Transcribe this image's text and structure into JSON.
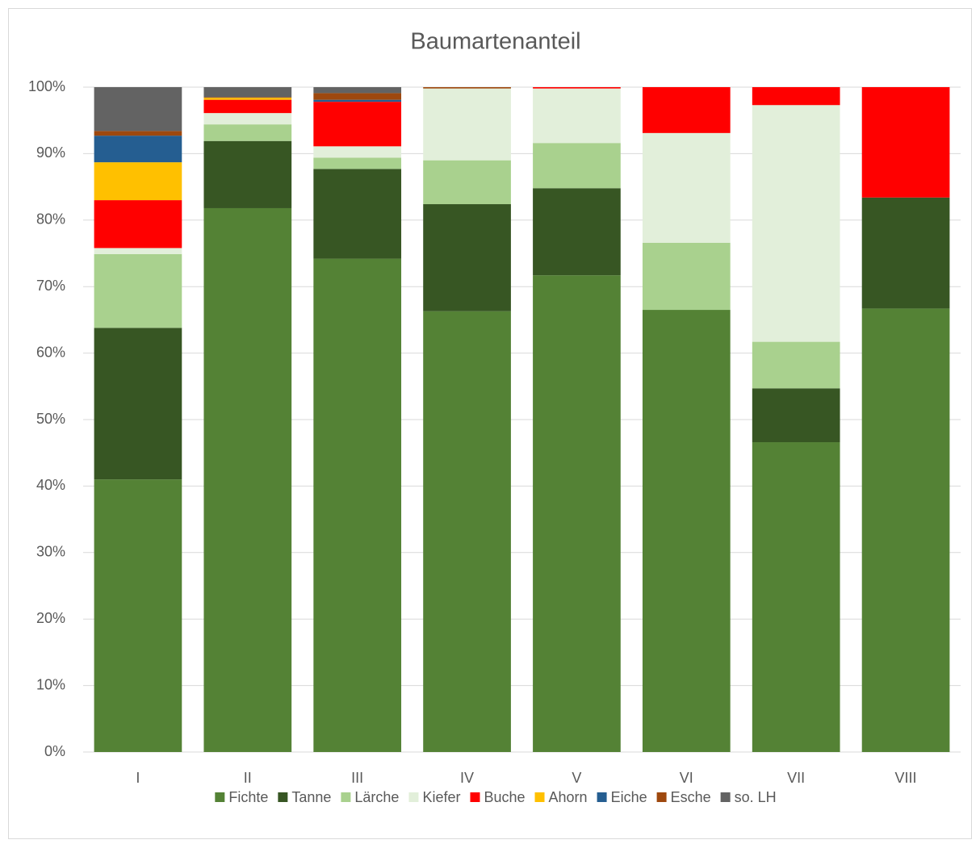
{
  "chart_data": {
    "type": "stacked_bar",
    "title": "Baumartenanteil",
    "categories": [
      "I",
      "II",
      "III",
      "IV",
      "V",
      "VI",
      "VII",
      "VIII"
    ],
    "series": [
      {
        "name": "Fichte",
        "color": "#548235",
        "values": [
          41.0,
          81.8,
          74.2,
          66.3,
          71.7,
          66.5,
          46.6,
          66.7
        ]
      },
      {
        "name": "Tanne",
        "color": "#375623",
        "values": [
          22.8,
          10.1,
          13.5,
          16.1,
          13.1,
          0,
          8.1,
          16.7
        ]
      },
      {
        "name": "Lärche",
        "color": "#a9d18e",
        "values": [
          11.1,
          2.5,
          1.7,
          6.6,
          6.8,
          10.1,
          7.0,
          0
        ]
      },
      {
        "name": "Kiefer",
        "color": "#e2efda",
        "values": [
          0.9,
          1.7,
          1.7,
          10.8,
          8.2,
          16.5,
          35.6,
          0
        ]
      },
      {
        "name": "Buche",
        "color": "#ff0000",
        "values": [
          7.2,
          2.0,
          6.7,
          0,
          0.2,
          6.9,
          2.7,
          16.6
        ]
      },
      {
        "name": "Ahorn",
        "color": "#ffc000",
        "values": [
          5.7,
          0.3,
          0,
          0,
          0,
          0,
          0,
          0
        ]
      },
      {
        "name": "Eiche",
        "color": "#255e91",
        "values": [
          4.0,
          0,
          0.3,
          0,
          0,
          0,
          0,
          0
        ]
      },
      {
        "name": "Esche",
        "color": "#9e480e",
        "values": [
          0.7,
          0.1,
          1.0,
          0.2,
          0,
          0,
          0,
          0
        ]
      },
      {
        "name": "so. LH",
        "color": "#636363",
        "values": [
          6.6,
          1.5,
          0.9,
          0,
          0,
          0,
          0,
          0
        ]
      }
    ],
    "ylim": [
      0,
      100
    ],
    "yticks": [
      {
        "value": 0,
        "label": "0%"
      },
      {
        "value": 10,
        "label": "10%"
      },
      {
        "value": 20,
        "label": "20%"
      },
      {
        "value": 30,
        "label": "30%"
      },
      {
        "value": 40,
        "label": "40%"
      },
      {
        "value": 50,
        "label": "50%"
      },
      {
        "value": 60,
        "label": "60%"
      },
      {
        "value": 70,
        "label": "70%"
      },
      {
        "value": 80,
        "label": "80%"
      },
      {
        "value": 90,
        "label": "90%"
      },
      {
        "value": 100,
        "label": "100%"
      }
    ],
    "grid": true,
    "legend": "bottom"
  }
}
